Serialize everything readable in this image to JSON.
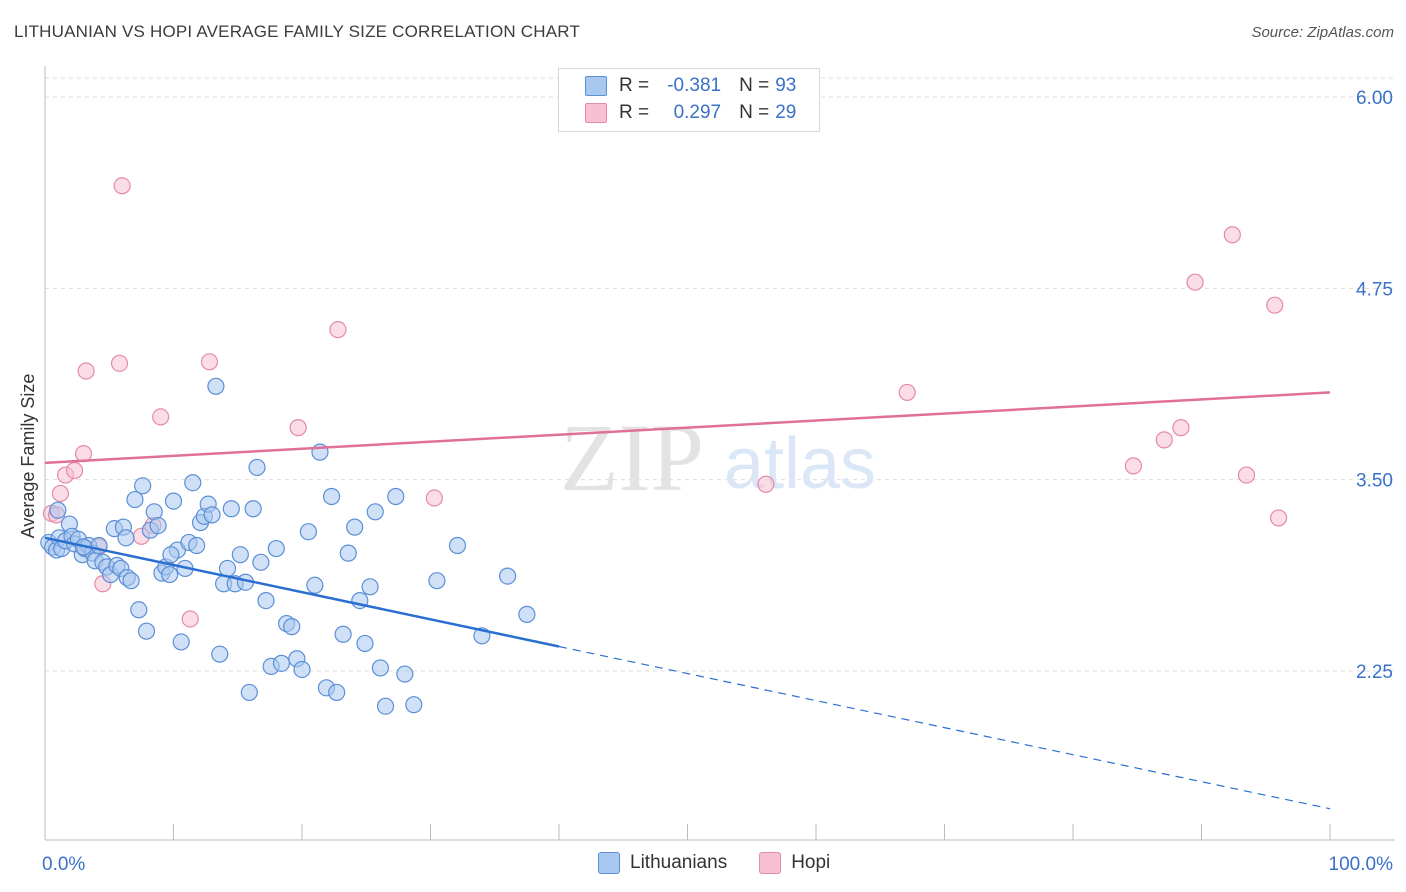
{
  "header": {
    "title": "LITHUANIAN VS HOPI AVERAGE FAMILY SIZE CORRELATION CHART",
    "source": "Source: ZipAtlas.com"
  },
  "legend": {
    "series1": {
      "r_label": "R =",
      "r_value": "-0.381",
      "n_label": "N =",
      "n_value": "93"
    },
    "series2": {
      "r_label": "R =",
      "r_value": "0.297",
      "n_label": "N =",
      "n_value": "29"
    }
  },
  "bottom_legend": {
    "series1": "Lithuanians",
    "series2": "Hopi"
  },
  "watermark": {
    "zip": "ZIP",
    "atlas": "atlas"
  },
  "colors": {
    "blue_fill": "#a9c8f0",
    "blue_stroke": "#5b8fd6",
    "blue_line": "#2a6fd0",
    "pink_fill": "#f7c1d2",
    "pink_stroke": "#e58aa8",
    "pink_line": "#e07098",
    "axis_text": "#3a70c9",
    "grid": "#dddddd"
  },
  "chart_data": {
    "type": "scatter",
    "title": "LITHUANIAN VS HOPI AVERAGE FAMILY SIZE CORRELATION CHART",
    "xlabel": "",
    "ylabel": "Average Family Size",
    "xlim": [
      0,
      100
    ],
    "ylim": [
      1.0,
      6.2
    ],
    "x_tick_labels": [
      "0.0%",
      "100.0%"
    ],
    "y_ticks": [
      2.25,
      3.5,
      4.75,
      6.0
    ],
    "y_tick_labels": [
      "2.25",
      "3.50",
      "4.75",
      "6.00"
    ],
    "grid": true,
    "series": [
      {
        "name": "Lithuanians",
        "r": -0.381,
        "n": 93,
        "trend": {
          "x0": 0,
          "y0": 3.12,
          "x1": 40,
          "y1": 2.41,
          "x_dash_end": 100,
          "y_dash_end": 1.35
        },
        "points": [
          [
            0.3,
            3.09
          ],
          [
            0.6,
            3.06
          ],
          [
            0.9,
            3.04
          ],
          [
            1.1,
            3.12
          ],
          [
            1.3,
            3.05
          ],
          [
            1.6,
            3.1
          ],
          [
            1.9,
            3.21
          ],
          [
            2.1,
            3.13
          ],
          [
            2.3,
            3.08
          ],
          [
            2.6,
            3.11
          ],
          [
            2.9,
            3.01
          ],
          [
            3.1,
            3.05
          ],
          [
            3.4,
            3.07
          ],
          [
            3.7,
            3.02
          ],
          [
            3.9,
            2.97
          ],
          [
            4.2,
            3.07
          ],
          [
            4.5,
            2.96
          ],
          [
            4.8,
            2.93
          ],
          [
            5.1,
            2.88
          ],
          [
            5.4,
            3.18
          ],
          [
            5.6,
            2.94
          ],
          [
            5.9,
            2.92
          ],
          [
            6.1,
            3.19
          ],
          [
            6.4,
            2.86
          ],
          [
            6.7,
            2.84
          ],
          [
            7.0,
            3.37
          ],
          [
            7.3,
            2.65
          ],
          [
            7.6,
            3.46
          ],
          [
            7.9,
            2.51
          ],
          [
            8.2,
            3.17
          ],
          [
            8.5,
            3.29
          ],
          [
            8.8,
            3.2
          ],
          [
            9.1,
            2.89
          ],
          [
            9.4,
            2.93
          ],
          [
            9.7,
            2.88
          ],
          [
            10.0,
            3.36
          ],
          [
            10.3,
            3.04
          ],
          [
            10.6,
            2.44
          ],
          [
            10.9,
            2.92
          ],
          [
            11.2,
            3.09
          ],
          [
            11.5,
            3.48
          ],
          [
            11.8,
            3.07
          ],
          [
            12.1,
            3.22
          ],
          [
            12.4,
            3.26
          ],
          [
            12.7,
            3.34
          ],
          [
            13.0,
            3.27
          ],
          [
            13.3,
            4.11
          ],
          [
            13.6,
            2.36
          ],
          [
            13.9,
            2.82
          ],
          [
            14.2,
            2.92
          ],
          [
            14.5,
            3.31
          ],
          [
            14.8,
            2.82
          ],
          [
            15.2,
            3.01
          ],
          [
            15.6,
            2.83
          ],
          [
            15.9,
            2.11
          ],
          [
            16.2,
            3.31
          ],
          [
            16.5,
            3.58
          ],
          [
            16.8,
            2.96
          ],
          [
            17.2,
            2.71
          ],
          [
            17.6,
            2.28
          ],
          [
            18.0,
            3.05
          ],
          [
            18.4,
            2.3
          ],
          [
            18.8,
            2.56
          ],
          [
            19.2,
            2.54
          ],
          [
            19.6,
            2.33
          ],
          [
            20.0,
            2.26
          ],
          [
            20.5,
            3.16
          ],
          [
            21.0,
            2.81
          ],
          [
            21.4,
            3.68
          ],
          [
            21.9,
            2.14
          ],
          [
            22.3,
            3.39
          ],
          [
            22.7,
            2.11
          ],
          [
            23.2,
            2.49
          ],
          [
            23.6,
            3.02
          ],
          [
            24.1,
            3.19
          ],
          [
            24.5,
            2.71
          ],
          [
            24.9,
            2.43
          ],
          [
            25.3,
            2.8
          ],
          [
            25.7,
            3.29
          ],
          [
            26.1,
            2.27
          ],
          [
            26.5,
            2.02
          ],
          [
            27.3,
            3.39
          ],
          [
            28.0,
            2.23
          ],
          [
            28.7,
            2.03
          ],
          [
            30.5,
            2.84
          ],
          [
            32.1,
            3.07
          ],
          [
            34.0,
            2.48
          ],
          [
            36.0,
            2.87
          ],
          [
            37.5,
            2.62
          ],
          [
            1.0,
            3.3
          ],
          [
            3.0,
            3.06
          ],
          [
            6.3,
            3.12
          ],
          [
            9.8,
            3.01
          ]
        ]
      },
      {
        "name": "Hopi",
        "r": 0.297,
        "n": 29,
        "trend": {
          "x0": 0,
          "y0": 3.61,
          "x1": 100,
          "y1": 4.07
        },
        "points": [
          [
            0.5,
            3.28
          ],
          [
            1.2,
            3.41
          ],
          [
            1.6,
            3.53
          ],
          [
            2.3,
            3.56
          ],
          [
            3.0,
            3.67
          ],
          [
            3.2,
            4.21
          ],
          [
            4.2,
            3.06
          ],
          [
            4.5,
            2.82
          ],
          [
            5.8,
            4.26
          ],
          [
            6.0,
            5.42
          ],
          [
            7.5,
            3.13
          ],
          [
            8.4,
            3.2
          ],
          [
            9.0,
            3.91
          ],
          [
            11.3,
            2.59
          ],
          [
            12.8,
            4.27
          ],
          [
            19.7,
            3.84
          ],
          [
            22.8,
            4.48
          ],
          [
            30.3,
            3.38
          ],
          [
            56.1,
            3.47
          ],
          [
            67.1,
            4.07
          ],
          [
            84.7,
            3.59
          ],
          [
            87.1,
            3.76
          ],
          [
            88.4,
            3.84
          ],
          [
            89.5,
            4.79
          ],
          [
            92.4,
            5.1
          ],
          [
            93.5,
            3.53
          ],
          [
            95.7,
            4.64
          ],
          [
            96.0,
            3.25
          ],
          [
            0.9,
            3.27
          ]
        ]
      }
    ]
  }
}
